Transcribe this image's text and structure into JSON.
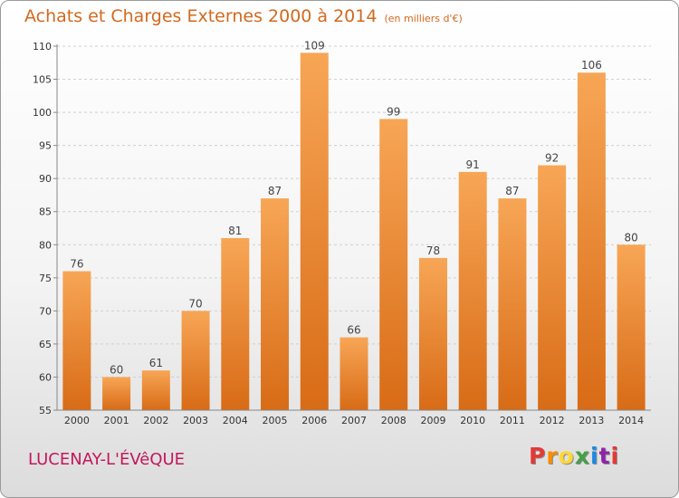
{
  "header": {
    "title": "Achats et Charges Externes 2000 à 2014",
    "unit": "(en milliers d'€)"
  },
  "footer": {
    "commune": "LUCENAY-L'ÉVêQUE",
    "logo_text": "Proxiti",
    "logo_colors": [
      "#e53935",
      "#fb8c00",
      "#fdd835",
      "#43a047",
      "#1e88e5",
      "#8e24aa",
      "#e53935"
    ]
  },
  "chart_data": {
    "type": "bar",
    "title": "Achats et Charges Externes 2000 à 2014",
    "subtitle": "(en milliers d'€)",
    "categories": [
      "2000",
      "2001",
      "2002",
      "2003",
      "2004",
      "2005",
      "2006",
      "2007",
      "2008",
      "2009",
      "2010",
      "2011",
      "2012",
      "2013",
      "2014"
    ],
    "values": [
      76,
      60,
      61,
      70,
      81,
      87,
      109,
      66,
      99,
      78,
      91,
      87,
      92,
      106,
      80
    ],
    "ylim": [
      55,
      110
    ],
    "yticks": [
      55,
      60,
      65,
      70,
      75,
      80,
      85,
      90,
      95,
      100,
      105,
      110
    ],
    "grid": true,
    "bar_color": "#e8862e"
  }
}
